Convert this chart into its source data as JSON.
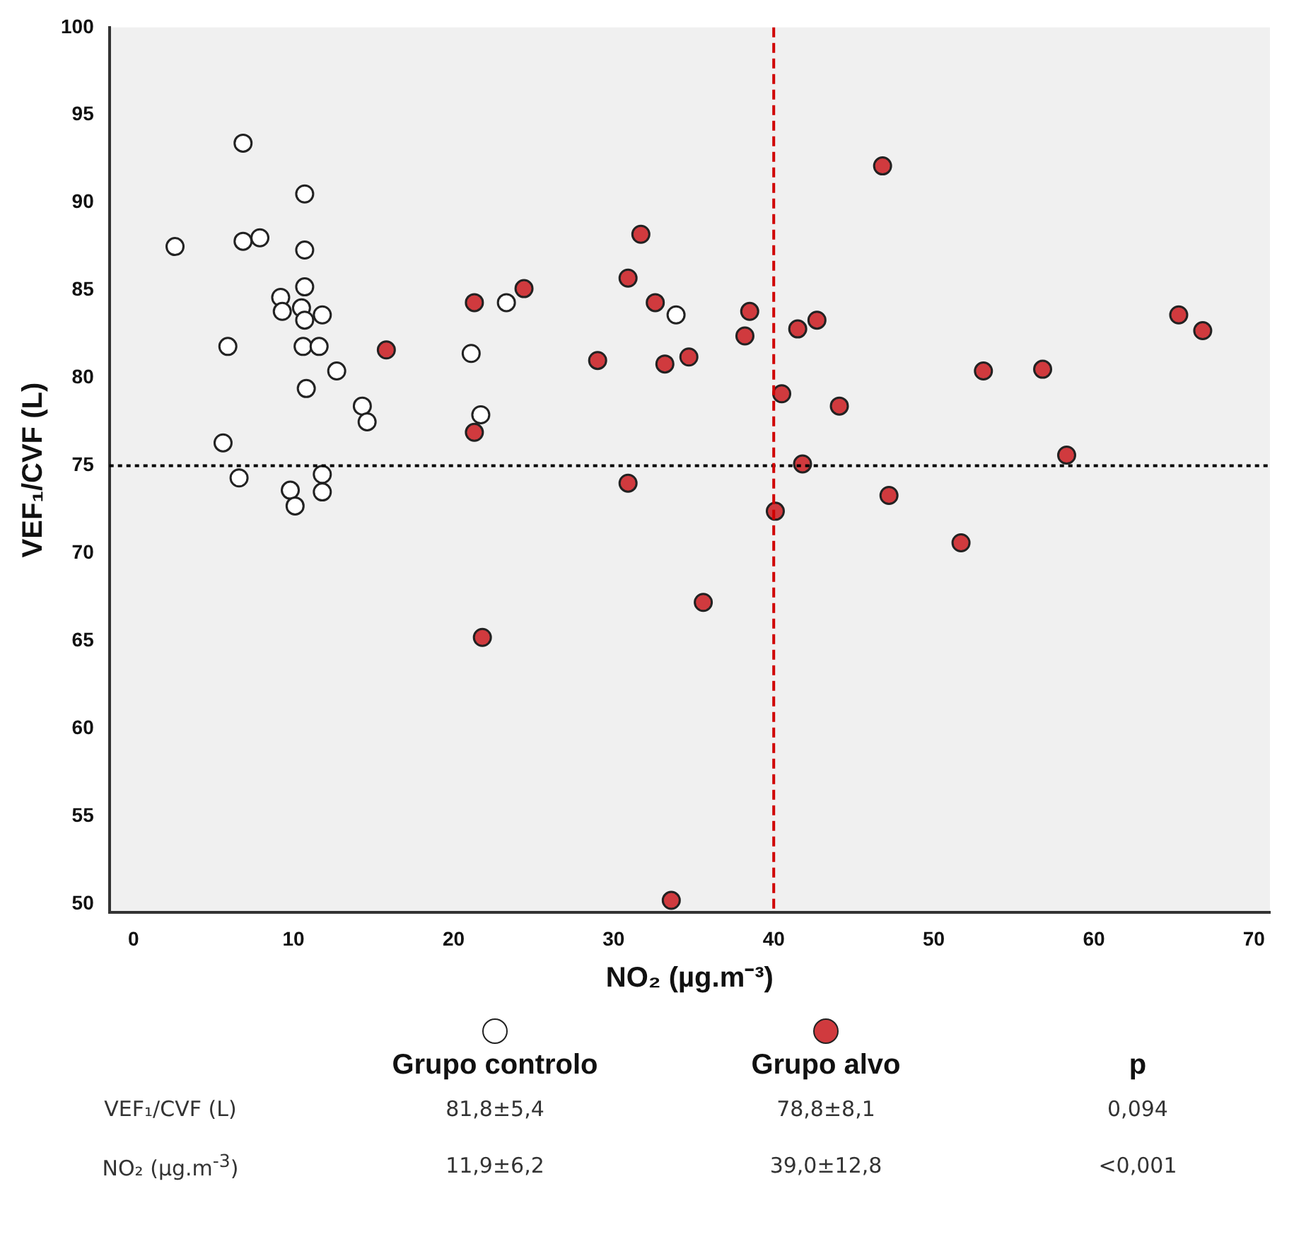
{
  "chart_data": {
    "type": "scatter",
    "xlabel": "NO₂ (µg.m⁻³)",
    "ylabel": "VEF₁/CVF (L)",
    "xlim": [
      -1.5,
      71
    ],
    "xticks": [
      0,
      10,
      20,
      30,
      40,
      50,
      60,
      70
    ],
    "ylim": [
      49.5,
      100
    ],
    "yticks": [
      50,
      55,
      60,
      65,
      70,
      75,
      80,
      85,
      90,
      95,
      100
    ],
    "grid": false,
    "marker": "circle",
    "legend": "bottom",
    "series": [
      {
        "name": "Grupo controlo",
        "color": "#ffffff",
        "x": [
          6.85,
          10.7,
          2.6,
          6.85,
          7.9,
          10.7,
          10.7,
          9.2,
          9.3,
          10.5,
          10.7,
          11.8,
          5.9,
          10.6,
          11.6,
          12.7,
          10.8,
          14.3,
          14.6,
          5.6,
          6.6,
          11.8,
          9.8,
          11.8,
          10.1,
          21.1,
          23.3,
          21.7,
          33.9
        ],
        "values": [
          93.4,
          90.5,
          87.5,
          87.8,
          88.0,
          87.3,
          85.2,
          84.6,
          83.8,
          84.0,
          83.3,
          83.6,
          81.8,
          81.8,
          81.8,
          80.4,
          79.4,
          78.4,
          77.5,
          76.3,
          74.3,
          74.5,
          73.6,
          73.5,
          72.7,
          81.4,
          84.3,
          77.9,
          83.6
        ]
      },
      {
        "name": "Grupo alvo",
        "color": "#d03a3e",
        "x": [
          15.8,
          21.3,
          24.4,
          21.3,
          31.7,
          30.9,
          32.6,
          29.0,
          33.2,
          34.7,
          38.5,
          38.2,
          41.5,
          42.7,
          40.5,
          44.1,
          41.8,
          30.9,
          40.1,
          35.6,
          21.8,
          33.6,
          46.8,
          53.1,
          56.8,
          58.3,
          65.3,
          66.8,
          47.2,
          51.7
        ],
        "values": [
          81.6,
          84.3,
          85.1,
          76.9,
          88.2,
          85.7,
          84.3,
          81.0,
          80.8,
          81.2,
          83.8,
          82.4,
          82.8,
          83.3,
          79.1,
          78.4,
          75.1,
          74.0,
          72.4,
          67.2,
          65.2,
          50.2,
          92.1,
          80.4,
          80.5,
          75.6,
          83.6,
          82.7,
          73.3,
          70.6
        ]
      }
    ],
    "ref_lines": [
      {
        "axis": "y",
        "value": 75,
        "color": "#000000",
        "line_style": "dotted"
      },
      {
        "axis": "x",
        "value": 40,
        "color": "#d00000",
        "line_style": "dashed"
      }
    ],
    "annotations": [
      "p",
      "VEF₁/CVF (L)",
      "81,8±5,4",
      "78,8±8,1",
      "0,094",
      "NO₂ (µg.m$^{-3}$)",
      "11,9±6,2",
      "39,0±12,8",
      "<0,001"
    ]
  }
}
